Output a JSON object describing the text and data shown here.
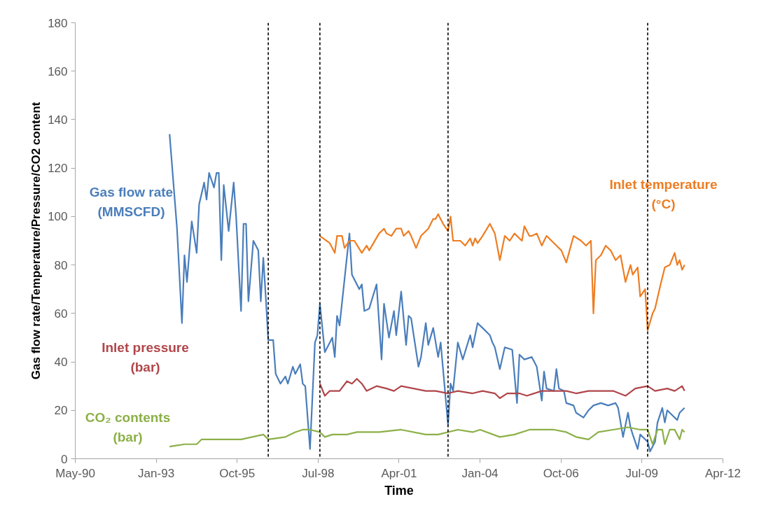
{
  "chart_data": {
    "type": "line",
    "xlabel": "Time",
    "ylabel": "Gas flow rate/Temperature/Pressure/CO2 content",
    "xlim": [
      "1990-05-07",
      "2012-04-02"
    ],
    "xticks": [
      {
        "value": "1990-05-07",
        "label": "May-90"
      },
      {
        "value": "1993-01-31",
        "label": "Jan-93"
      },
      {
        "value": "1995-10-28",
        "label": "Oct-95"
      },
      {
        "value": "1998-07-24",
        "label": "Jul-98"
      },
      {
        "value": "2001-04-19",
        "label": "Apr-01"
      },
      {
        "value": "2004-01-14",
        "label": "Jan-04"
      },
      {
        "value": "2006-10-10",
        "label": "Oct-06"
      },
      {
        "value": "2009-07-06",
        "label": "Jul-09"
      },
      {
        "value": "2012-04-02",
        "label": "Apr-12"
      }
    ],
    "ylim": [
      0,
      180
    ],
    "yticks": [
      0,
      20,
      40,
      60,
      80,
      100,
      120,
      140,
      160,
      180
    ],
    "grid": false,
    "line_style": "solid",
    "ref_lines": [
      {
        "axis": "x",
        "value": "1996-11",
        "line_style": "dashed",
        "color": "#000000"
      },
      {
        "axis": "x",
        "value": "1998-08",
        "line_style": "dashed",
        "color": "#000000"
      },
      {
        "axis": "x",
        "value": "2002-12",
        "line_style": "dashed",
        "color": "#000000"
      },
      {
        "axis": "x",
        "value": "2009-09",
        "line_style": "dashed",
        "color": "#000000"
      }
    ],
    "series": [
      {
        "name": "Gas flow rate\n(MMSCFD)",
        "color": "#4a7ebb",
        "x": [
          "1993-07",
          "1993-10",
          "1993-12",
          "1994-01",
          "1994-02",
          "1994-04",
          "1994-06",
          "1994-07",
          "1994-09",
          "1994-10",
          "1994-11",
          "1995-01",
          "1995-02",
          "1995-03",
          "1995-04",
          "1995-05",
          "1995-07",
          "1995-09",
          "1995-10",
          "1995-12",
          "1996-01",
          "1996-02",
          "1996-03",
          "1996-05",
          "1996-07",
          "1996-08",
          "1996-09",
          "1996-10",
          "1996-11",
          "1997-01",
          "1997-02",
          "1997-04",
          "1997-06",
          "1997-07",
          "1997-09",
          "1997-10",
          "1997-12",
          "1998-01",
          "1998-02",
          "1998-04",
          "1998-06",
          "1998-07",
          "1998-08",
          "1998-10",
          "1999-01",
          "1999-02",
          "1999-03",
          "1999-04",
          "1999-06",
          "1999-08",
          "1999-09",
          "1999-12",
          "2000-01",
          "2000-02",
          "2000-04",
          "2000-07",
          "2000-09",
          "2000-10",
          "2000-12",
          "2001-02",
          "2001-03",
          "2001-05",
          "2001-07",
          "2001-08",
          "2001-09",
          "2001-12",
          "2002-01",
          "2002-03",
          "2002-04",
          "2002-06",
          "2002-08",
          "2002-09",
          "2002-12",
          "2003-01",
          "2003-02",
          "2003-04",
          "2003-06",
          "2003-09",
          "2003-10",
          "2003-12",
          "2004-02",
          "2004-05",
          "2004-06",
          "2004-07",
          "2004-09",
          "2004-11",
          "2005-02",
          "2005-04",
          "2005-05",
          "2005-07",
          "2005-10",
          "2005-12",
          "2006-02",
          "2006-03",
          "2006-04",
          "2006-07",
          "2006-08",
          "2006-09",
          "2006-11",
          "2006-12",
          "2007-03",
          "2007-04",
          "2007-07",
          "2007-09",
          "2007-11",
          "2008-02",
          "2008-05",
          "2008-08",
          "2008-09",
          "2008-11",
          "2009-01",
          "2009-02",
          "2009-03",
          "2009-05",
          "2009-06",
          "2009-08",
          "2009-09",
          "2009-10",
          "2009-12",
          "2010-01",
          "2010-03",
          "2010-04",
          "2010-05",
          "2010-06",
          "2010-09",
          "2010-10",
          "2010-12"
        ],
        "values": [
          134,
          95,
          56,
          84,
          73,
          98,
          85,
          105,
          114,
          107,
          118,
          112,
          118,
          118,
          82,
          113,
          94,
          114,
          100,
          61,
          97,
          97,
          65,
          90,
          86,
          65,
          83,
          67,
          49,
          49,
          35,
          31,
          34,
          31,
          38,
          35,
          39,
          31,
          30,
          4,
          48,
          51,
          64,
          44,
          50,
          42,
          59,
          55,
          74,
          93,
          76,
          70,
          72,
          61,
          62,
          72,
          41,
          64,
          50,
          61,
          51,
          69,
          47,
          59,
          58,
          38,
          42,
          56,
          47,
          54,
          42,
          48,
          14,
          31,
          28,
          48,
          41,
          51,
          46,
          56,
          54,
          51,
          48,
          46,
          37,
          46,
          45,
          23,
          43,
          41,
          42,
          38,
          24,
          36,
          29,
          28,
          37,
          29,
          28,
          23,
          22,
          19,
          17,
          20,
          22,
          23,
          22,
          23,
          21,
          9,
          19,
          13,
          10,
          4,
          10,
          8,
          7,
          3,
          7,
          15,
          21,
          15,
          20,
          19,
          16,
          19,
          21
        ]
      },
      {
        "name": "Inlet temperature\n(°C)",
        "color": "#ee7d22",
        "x": [
          "1998-08",
          "1998-12",
          "1999-02",
          "1999-03",
          "1999-05",
          "1999-06",
          "1999-08",
          "1999-10",
          "2000-01",
          "2000-03",
          "2000-04",
          "2000-08",
          "2000-10",
          "2000-11",
          "2001-01",
          "2001-03",
          "2001-05",
          "2001-06",
          "2001-08",
          "2001-09",
          "2001-11",
          "2002-01",
          "2002-04",
          "2002-06",
          "2002-07",
          "2002-08",
          "2002-10",
          "2002-12",
          "2003-01",
          "2003-02",
          "2003-05",
          "2003-07",
          "2003-09",
          "2003-10",
          "2003-11",
          "2003-12",
          "2004-02",
          "2004-05",
          "2004-07",
          "2004-09",
          "2004-11",
          "2005-01",
          "2005-03",
          "2005-06",
          "2005-07",
          "2005-09",
          "2005-10",
          "2005-12",
          "2006-02",
          "2006-04",
          "2006-06",
          "2006-08",
          "2006-10",
          "2006-12",
          "2007-03",
          "2007-06",
          "2007-08",
          "2007-10",
          "2007-11",
          "2007-12",
          "2008-02",
          "2008-04",
          "2008-06",
          "2008-08",
          "2008-10",
          "2008-12",
          "2009-02",
          "2009-03",
          "2009-05",
          "2009-06",
          "2009-08",
          "2009-09",
          "2009-11",
          "2009-12",
          "2010-02",
          "2010-04",
          "2010-06",
          "2010-08",
          "2010-09",
          "2010-10",
          "2010-11",
          "2010-12"
        ],
        "values": [
          92,
          89,
          85,
          92,
          92,
          87,
          90,
          90,
          85,
          88,
          86,
          93,
          95,
          93,
          92,
          95,
          95,
          92,
          94,
          92,
          87,
          92,
          95,
          99,
          99,
          101,
          97,
          94,
          100,
          90,
          90,
          88,
          91,
          88,
          91,
          89,
          92,
          97,
          93,
          82,
          92,
          90,
          93,
          90,
          96,
          92,
          92,
          93,
          88,
          92,
          90,
          88,
          86,
          81,
          92,
          90,
          88,
          90,
          60,
          82,
          84,
          88,
          86,
          82,
          84,
          73,
          80,
          76,
          79,
          67,
          70,
          53,
          60,
          62,
          71,
          79,
          80,
          85,
          80,
          82,
          78,
          80
        ]
      },
      {
        "name": "Inlet pressure\n(bar)",
        "color": "#b0464a",
        "x": [
          "1998-08",
          "1998-10",
          "1998-12",
          "1999-04",
          "1999-07",
          "1999-09",
          "1999-11",
          "2000-01",
          "2000-03",
          "2000-07",
          "2000-11",
          "2001-02",
          "2001-05",
          "2001-10",
          "2002-03",
          "2002-07",
          "2002-12",
          "2003-04",
          "2003-10",
          "2004-02",
          "2004-07",
          "2004-09",
          "2004-12",
          "2005-05",
          "2005-08",
          "2006-02",
          "2006-07",
          "2006-12",
          "2007-04",
          "2007-09",
          "2008-02",
          "2008-07",
          "2008-12",
          "2009-04",
          "2009-09",
          "2009-12",
          "2010-05",
          "2010-08",
          "2010-11",
          "2010-12"
        ],
        "values": [
          31,
          26,
          28,
          28,
          32,
          31,
          33,
          31,
          28,
          30,
          29,
          28,
          30,
          29,
          28,
          28,
          27,
          28,
          27,
          28,
          27,
          25,
          27,
          27,
          26,
          28,
          28,
          28,
          27,
          28,
          28,
          28,
          26,
          29,
          30,
          28,
          29,
          28,
          30,
          28
        ]
      },
      {
        "name": "CO₂ contents\n(bar)",
        "color": "#8cb048",
        "x": [
          "1993-07",
          "1994-01",
          "1994-06",
          "1994-08",
          "1995-06",
          "1995-12",
          "1996-09",
          "1996-11",
          "1997-06",
          "1997-10",
          "1998-01",
          "1998-04",
          "1998-08",
          "1998-10",
          "1999-01",
          "1999-07",
          "1999-11",
          "2000-08",
          "2001-05",
          "2002-03",
          "2002-08",
          "2003-04",
          "2003-10",
          "2004-01",
          "2004-09",
          "2005-03",
          "2005-09",
          "2006-07",
          "2006-12",
          "2007-04",
          "2007-09",
          "2008-01",
          "2008-07",
          "2009-01",
          "2009-06",
          "2009-09",
          "2009-11",
          "2010-01",
          "2010-03",
          "2010-04",
          "2010-06",
          "2010-08",
          "2010-10",
          "2010-11",
          "2010-12"
        ],
        "values": [
          5,
          6,
          6,
          8,
          8,
          8,
          10,
          8,
          9,
          11,
          12,
          12,
          11,
          9,
          10,
          10,
          11,
          11,
          12,
          10,
          10,
          12,
          11,
          12,
          9,
          10,
          12,
          12,
          11,
          9,
          8,
          11,
          12,
          13,
          12,
          12,
          6,
          12,
          12,
          6,
          12,
          12,
          8,
          12,
          11
        ]
      }
    ]
  }
}
